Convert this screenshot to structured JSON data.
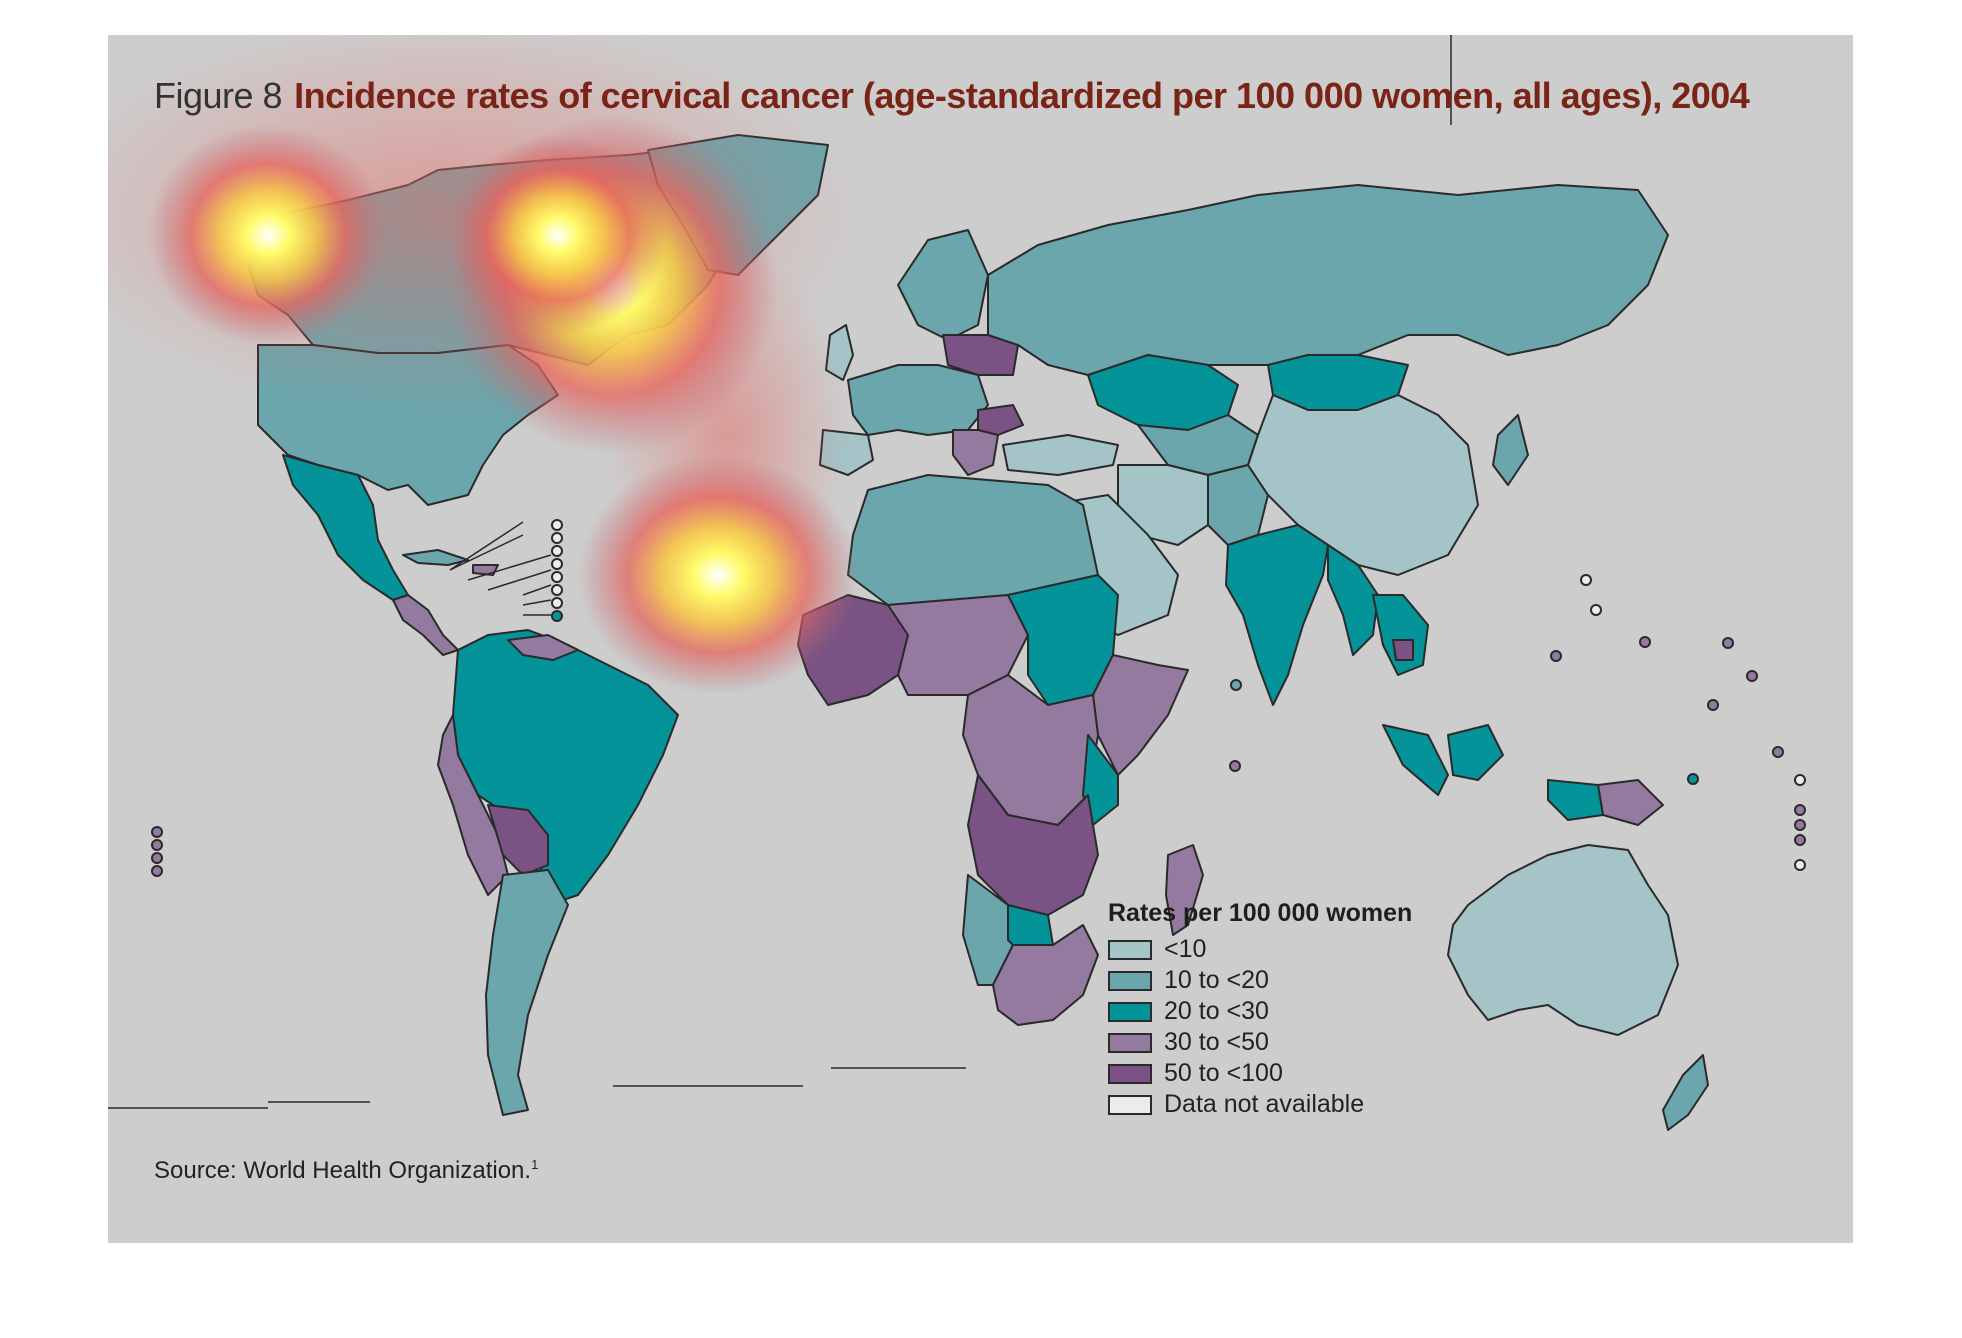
{
  "title": {
    "figure_label": "Figure 8",
    "text": "Incidence rates of cervical cancer (age-standardized per 100 000 women, all ages), 2004"
  },
  "source": {
    "text": "Source: World Health Organization.",
    "footnote": "1"
  },
  "legend": {
    "title": "Rates per 100 000 women",
    "items": [
      {
        "label": "<10",
        "color": "#a4c4c8"
      },
      {
        "label": "10 to <20",
        "color": "#6aa6ac"
      },
      {
        "label": "20 to <30",
        "color": "#05939a"
      },
      {
        "label": "30 to <50",
        "color": "#947a9e"
      },
      {
        "label": "50 to <100",
        "color": "#7a5384"
      },
      {
        "label": "Data not available",
        "color": "#ececec"
      }
    ]
  },
  "colors": {
    "background": "#cdcdcd",
    "border": "#2a2a2a",
    "title_accent": "#7a2418"
  }
}
